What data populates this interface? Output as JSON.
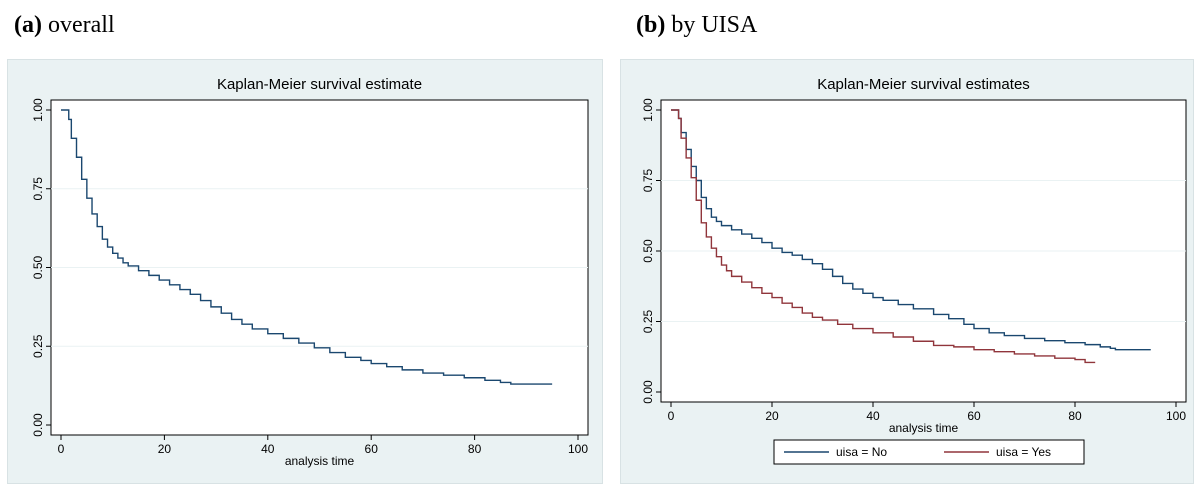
{
  "panel_a": {
    "letter": "(a)",
    "caption": " overall"
  },
  "panel_b": {
    "letter": "(b)",
    "caption": " by UISA"
  },
  "colors": {
    "navy": "#1a476f",
    "maroon": "#90353b",
    "panel_bg": "#eaf2f3",
    "grid": "#eaf2f3"
  },
  "chart_data": [
    {
      "type": "line",
      "step": true,
      "title": "Kaplan-Meier survival estimate",
      "xlabel": "analysis time",
      "ylabel": "",
      "xlim": [
        0,
        100
      ],
      "ylim": [
        0,
        1
      ],
      "xticks": [
        "0",
        "20",
        "40",
        "60",
        "80",
        "100"
      ],
      "yticks": [
        "0.00",
        "0.25",
        "0.50",
        "0.75",
        "1.00"
      ],
      "grid": true,
      "legend": null,
      "series": [
        {
          "color": "#1a476f",
          "x": [
            0,
            1.5,
            2,
            3,
            4,
            5,
            6,
            7,
            8,
            9,
            10,
            11,
            12,
            13,
            15,
            17,
            19,
            21,
            23,
            25,
            27,
            29,
            31,
            33,
            35,
            37,
            40,
            43,
            46,
            49,
            52,
            55,
            58,
            60,
            63,
            66,
            70,
            74,
            78,
            82,
            85,
            87,
            88,
            95
          ],
          "y": [
            1.0,
            0.97,
            0.91,
            0.85,
            0.78,
            0.72,
            0.67,
            0.63,
            0.59,
            0.565,
            0.545,
            0.53,
            0.515,
            0.505,
            0.49,
            0.475,
            0.46,
            0.445,
            0.43,
            0.415,
            0.395,
            0.375,
            0.355,
            0.335,
            0.32,
            0.305,
            0.29,
            0.275,
            0.26,
            0.245,
            0.23,
            0.215,
            0.205,
            0.195,
            0.185,
            0.175,
            0.165,
            0.158,
            0.15,
            0.142,
            0.135,
            0.13,
            0.13,
            0.13
          ]
        }
      ]
    },
    {
      "type": "line",
      "step": true,
      "title": "Kaplan-Meier survival estimates",
      "xlabel": "analysis time",
      "ylabel": "",
      "xlim": [
        0,
        100
      ],
      "ylim": [
        0,
        1
      ],
      "xticks": [
        "0",
        "20",
        "40",
        "60",
        "80",
        "100"
      ],
      "yticks": [
        "0.00",
        "0.25",
        "0.50",
        "0.75",
        "1.00"
      ],
      "grid": true,
      "legend": "bottom",
      "series": [
        {
          "name": "uisa = No",
          "color": "#1a476f",
          "x": [
            0,
            1.5,
            2,
            3,
            4,
            5,
            6,
            7,
            8,
            9,
            10,
            12,
            14,
            16,
            18,
            20,
            22,
            24,
            26,
            28,
            30,
            32,
            34,
            36,
            38,
            40,
            42,
            45,
            48,
            52,
            55,
            58,
            60,
            63,
            66,
            70,
            74,
            78,
            82,
            85,
            87,
            88,
            95
          ],
          "y": [
            1.0,
            0.97,
            0.92,
            0.86,
            0.8,
            0.75,
            0.69,
            0.65,
            0.62,
            0.605,
            0.59,
            0.575,
            0.56,
            0.545,
            0.53,
            0.51,
            0.495,
            0.485,
            0.47,
            0.455,
            0.435,
            0.41,
            0.385,
            0.365,
            0.35,
            0.335,
            0.325,
            0.31,
            0.295,
            0.275,
            0.26,
            0.24,
            0.225,
            0.21,
            0.2,
            0.19,
            0.182,
            0.175,
            0.168,
            0.16,
            0.155,
            0.15,
            0.15
          ]
        },
        {
          "name": "uisa = Yes",
          "color": "#90353b",
          "x": [
            0,
            1.5,
            2,
            3,
            4,
            5,
            6,
            7,
            8,
            9,
            10,
            11,
            12,
            14,
            16,
            18,
            20,
            22,
            24,
            26,
            28,
            30,
            33,
            36,
            40,
            44,
            48,
            52,
            56,
            60,
            64,
            68,
            72,
            76,
            80,
            82,
            84
          ],
          "y": [
            1.0,
            0.97,
            0.9,
            0.83,
            0.76,
            0.68,
            0.6,
            0.55,
            0.51,
            0.48,
            0.45,
            0.43,
            0.41,
            0.39,
            0.37,
            0.35,
            0.335,
            0.315,
            0.3,
            0.28,
            0.265,
            0.255,
            0.24,
            0.225,
            0.21,
            0.195,
            0.18,
            0.165,
            0.16,
            0.15,
            0.143,
            0.135,
            0.128,
            0.12,
            0.115,
            0.105,
            0.105
          ]
        }
      ]
    }
  ]
}
